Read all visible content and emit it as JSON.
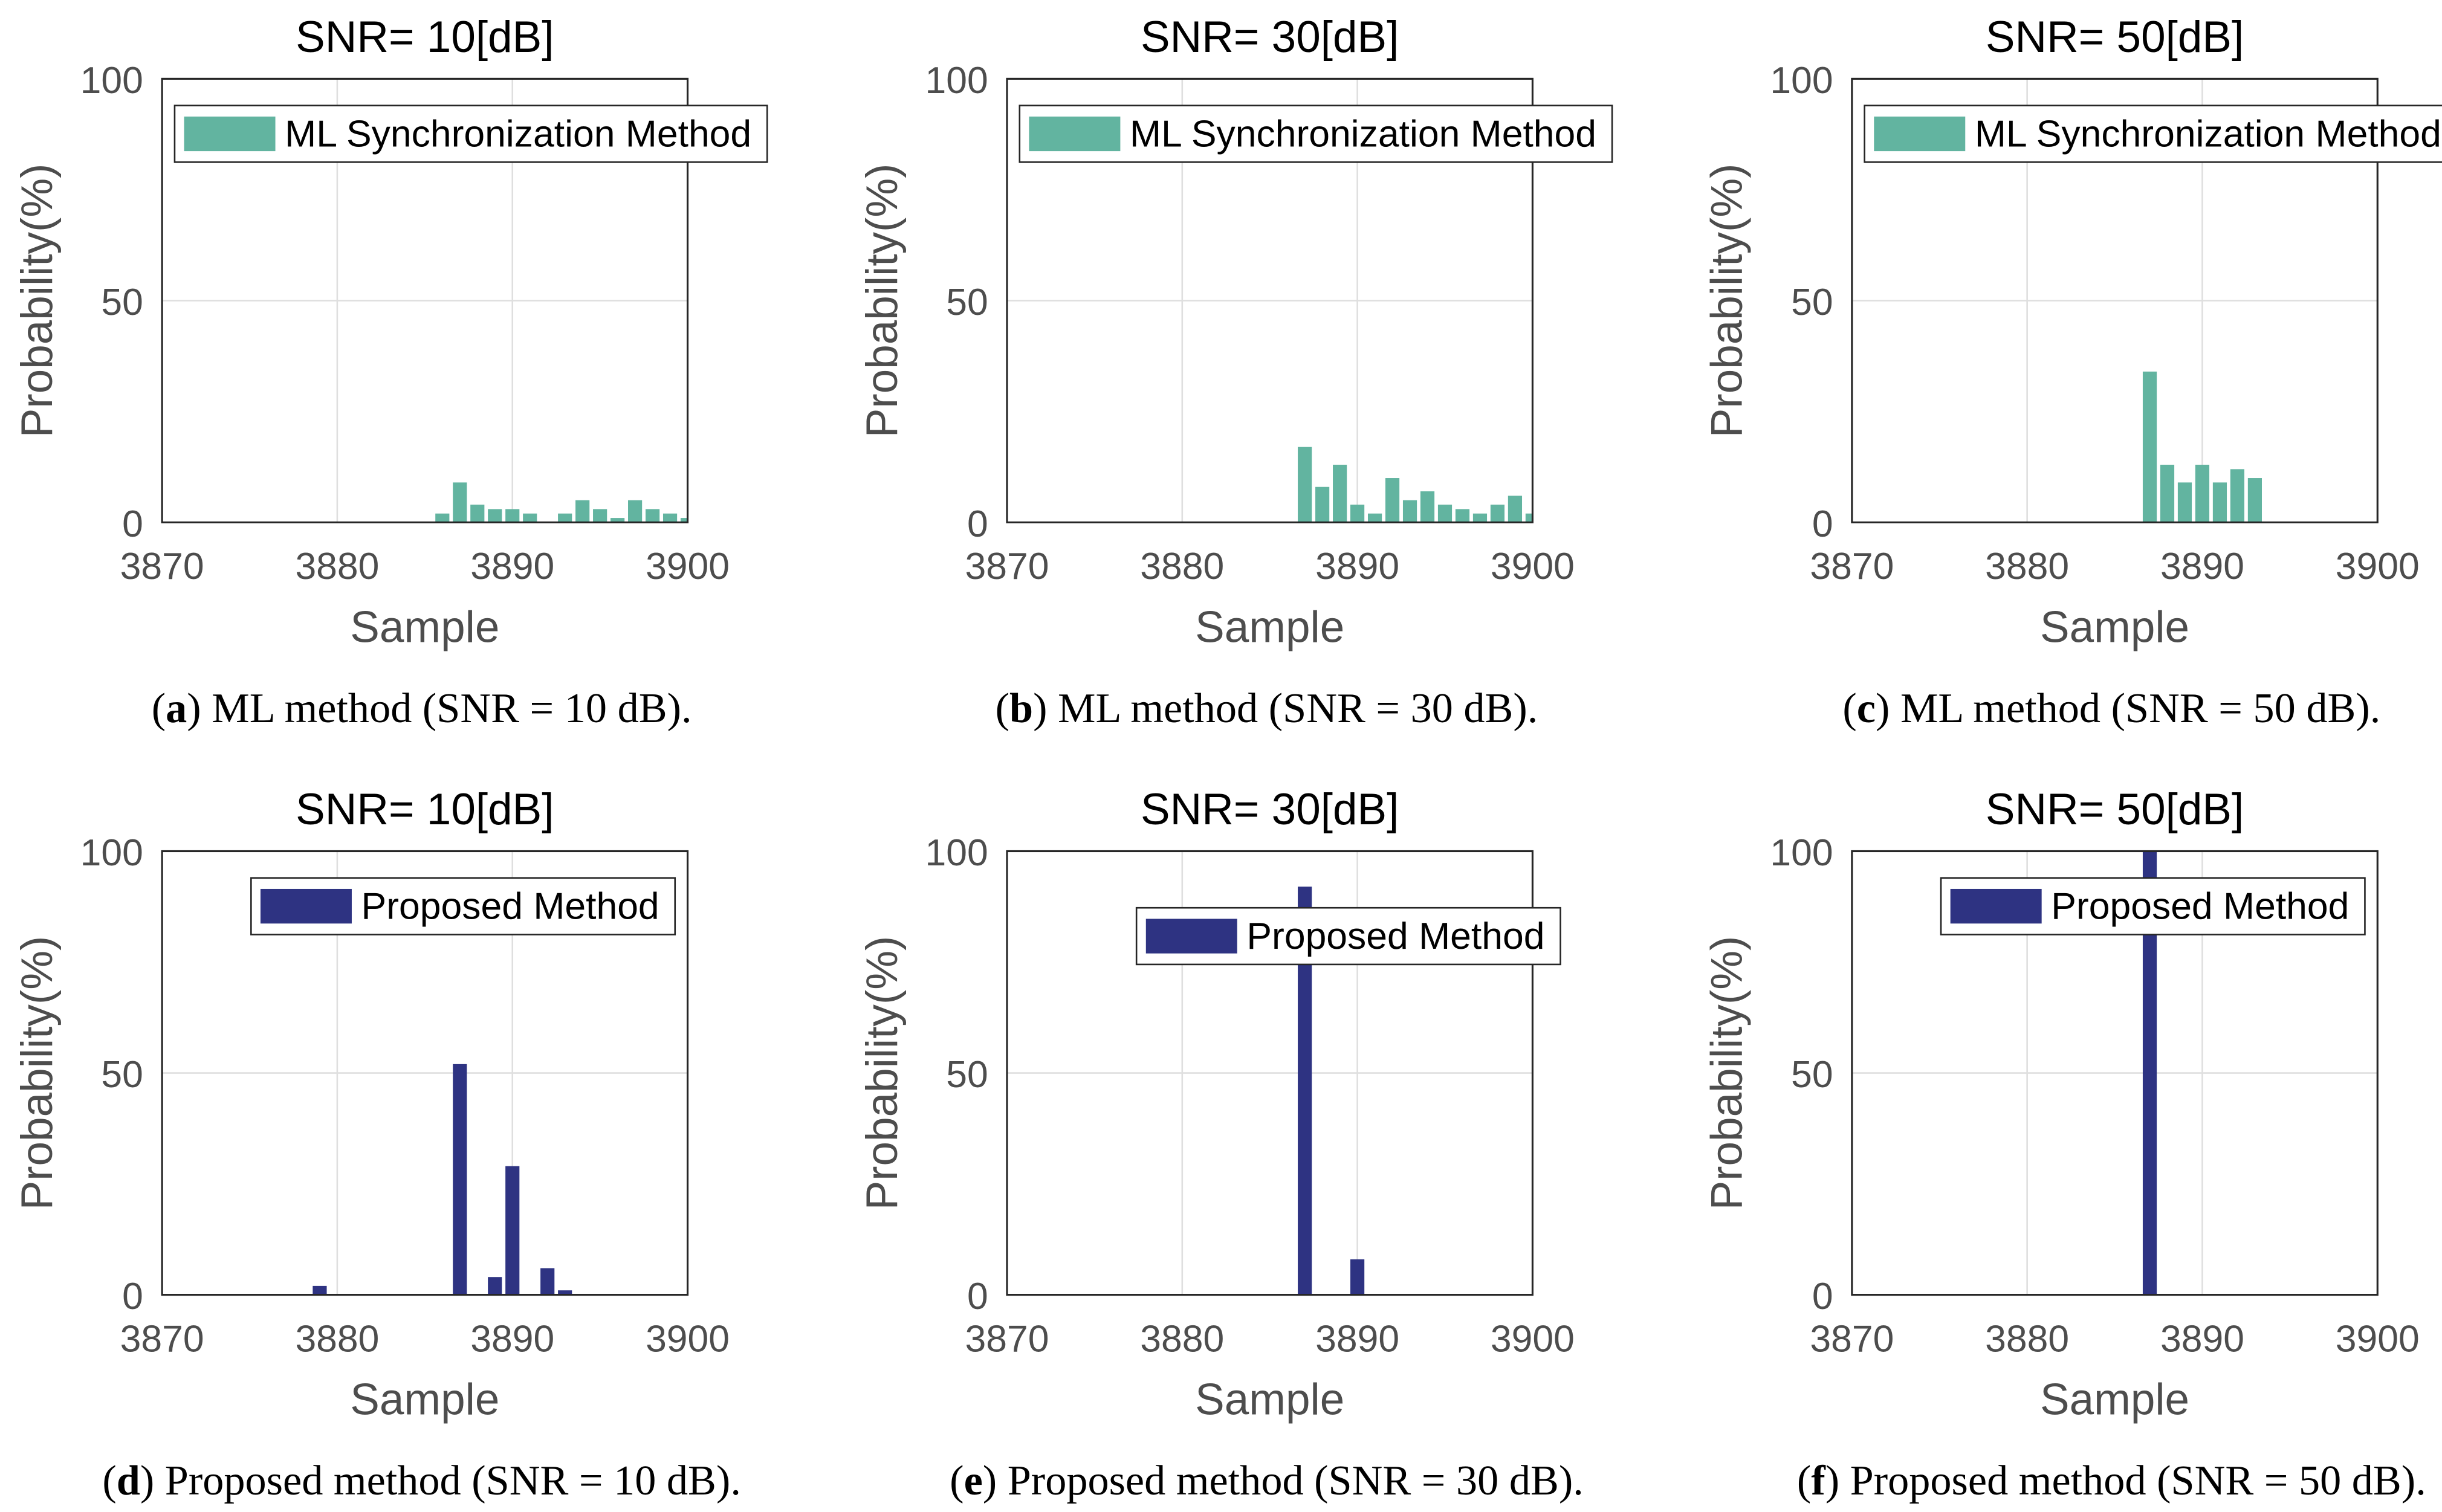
{
  "chart_data": [
    {
      "type": "bar",
      "title": "SNR= 10[dB]",
      "xlabel": "Sample",
      "ylabel": "Probability(%)",
      "x": [
        3886,
        3887,
        3888,
        3889,
        3890,
        3891,
        3893,
        3894,
        3895,
        3896,
        3897,
        3898,
        3899,
        3900
      ],
      "series": [
        {
          "name": "ML Synchronization Method",
          "color": "#62b4a0",
          "values": [
            2,
            9,
            4,
            3,
            3,
            2,
            2,
            5,
            3,
            1,
            5,
            3,
            2,
            1
          ]
        }
      ],
      "xlim": [
        3870,
        3900
      ],
      "xticks": [
        3870,
        3880,
        3890,
        3900
      ],
      "ylim": [
        0,
        100
      ],
      "yticks": [
        0,
        50,
        100
      ],
      "grid": true,
      "legend": "upper left",
      "caption": [
        "(",
        "a",
        ") ML method (SNR = 10 dB)."
      ]
    },
    {
      "type": "bar",
      "title": "SNR= 30[dB]",
      "xlabel": "Sample",
      "ylabel": "Probability(%)",
      "x": [
        3887,
        3888,
        3889,
        3890,
        3891,
        3892,
        3893,
        3894,
        3895,
        3896,
        3897,
        3898,
        3899,
        3900
      ],
      "series": [
        {
          "name": "ML Synchronization Method",
          "color": "#62b4a0",
          "values": [
            17,
            8,
            13,
            4,
            2,
            10,
            5,
            7,
            4,
            3,
            2,
            4,
            6,
            2
          ]
        }
      ],
      "xlim": [
        3870,
        3900
      ],
      "xticks": [
        3870,
        3880,
        3890,
        3900
      ],
      "ylim": [
        0,
        100
      ],
      "yticks": [
        0,
        50,
        100
      ],
      "grid": true,
      "legend": "upper left",
      "caption": [
        "(",
        "b",
        ") ML method (SNR = 30 dB)."
      ]
    },
    {
      "type": "bar",
      "title": "SNR= 50[dB]",
      "xlabel": "Sample",
      "ylabel": "Probability(%)",
      "x": [
        3887,
        3888,
        3889,
        3890,
        3891,
        3892,
        3893
      ],
      "series": [
        {
          "name": "ML Synchronization Method",
          "color": "#62b4a0",
          "values": [
            34,
            13,
            9,
            13,
            9,
            12,
            10
          ]
        }
      ],
      "xlim": [
        3870,
        3900
      ],
      "xticks": [
        3870,
        3880,
        3890,
        3900
      ],
      "ylim": [
        0,
        100
      ],
      "yticks": [
        0,
        50,
        100
      ],
      "grid": true,
      "legend": "upper left",
      "caption": [
        "(",
        "c",
        ") ML method (SNR = 50 dB)."
      ]
    },
    {
      "type": "bar",
      "title": "SNR= 10[dB]",
      "xlabel": "Sample",
      "ylabel": "Probability(%)",
      "x": [
        3879,
        3887,
        3889,
        3890,
        3892,
        3893
      ],
      "series": [
        {
          "name": "Proposed Method",
          "color": "#2e3382",
          "values": [
            2,
            52,
            4,
            29,
            6,
            1
          ]
        }
      ],
      "xlim": [
        3870,
        3900
      ],
      "xticks": [
        3870,
        3880,
        3890,
        3900
      ],
      "ylim": [
        0,
        100
      ],
      "yticks": [
        0,
        50,
        100
      ],
      "grid": true,
      "legend": "upper right",
      "caption": [
        "(",
        "d",
        ") Proposed method (SNR = 10 dB)."
      ]
    },
    {
      "type": "bar",
      "title": "SNR= 30[dB]",
      "xlabel": "Sample",
      "ylabel": "Probability(%)",
      "x": [
        3887,
        3890
      ],
      "series": [
        {
          "name": "Proposed Method",
          "color": "#2e3382",
          "values": [
            92,
            8
          ]
        }
      ],
      "xlim": [
        3870,
        3900
      ],
      "xticks": [
        3870,
        3880,
        3890,
        3900
      ],
      "ylim": [
        0,
        100
      ],
      "yticks": [
        0,
        50,
        100
      ],
      "grid": true,
      "legend": "upper center",
      "caption": [
        "(",
        "e",
        ") Proposed method (SNR = 30 dB)."
      ]
    },
    {
      "type": "bar",
      "title": "SNR= 50[dB]",
      "xlabel": "Sample",
      "ylabel": "Probability(%)",
      "x": [
        3887
      ],
      "series": [
        {
          "name": "Proposed Method",
          "color": "#2e3382",
          "values": [
            100
          ]
        }
      ],
      "xlim": [
        3870,
        3900
      ],
      "xticks": [
        3870,
        3880,
        3890,
        3900
      ],
      "ylim": [
        0,
        100
      ],
      "yticks": [
        0,
        50,
        100
      ],
      "grid": true,
      "legend": "upper right",
      "caption": [
        "(",
        "f",
        ") Proposed method (SNR = 50 dB)."
      ]
    }
  ]
}
